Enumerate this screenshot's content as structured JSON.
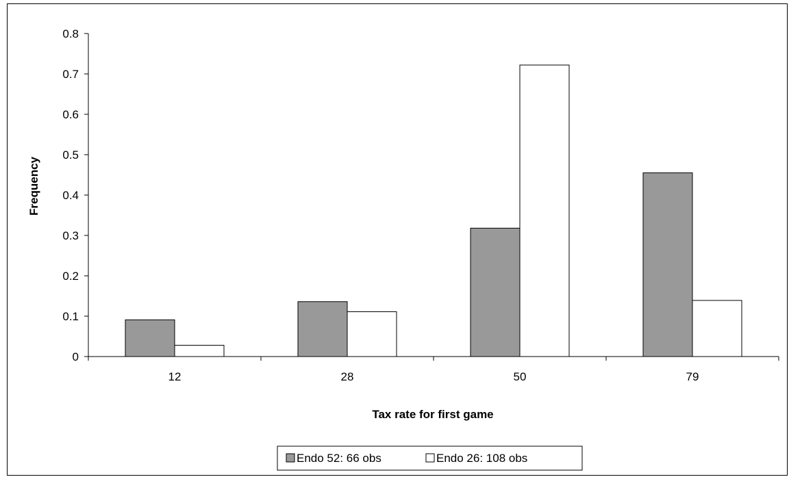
{
  "chart_data": {
    "type": "bar",
    "categories": [
      "12",
      "28",
      "50",
      "79"
    ],
    "series": [
      {
        "name": "Endo 52: 66 obs",
        "values": [
          0.091,
          0.136,
          0.318,
          0.455
        ],
        "color": "#999999"
      },
      {
        "name": "Endo 26: 108 obs",
        "values": [
          0.028,
          0.111,
          0.722,
          0.139
        ],
        "color": "#ffffff"
      }
    ],
    "xlabel": "Tax rate for first game",
    "ylabel": "Frequency",
    "ylim": [
      0,
      0.8
    ],
    "yticks": [
      "0",
      "0.1",
      "0.2",
      "0.3",
      "0.4",
      "0.5",
      "0.6",
      "0.7",
      "0.8"
    ],
    "grid": false,
    "legend_position": "bottom"
  }
}
